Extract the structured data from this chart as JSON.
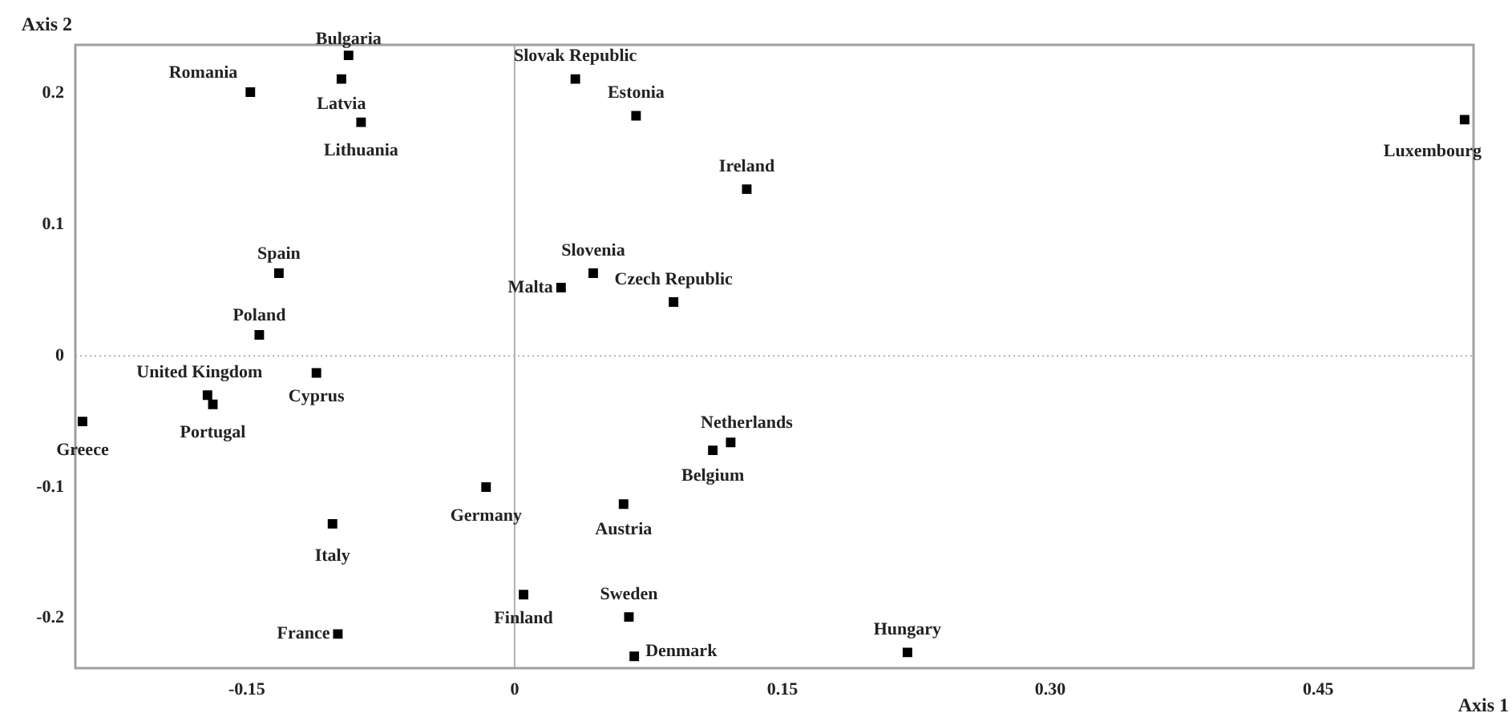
{
  "chart_data": {
    "type": "scatter",
    "xlabel": "Axis 1",
    "ylabel": "Axis 2",
    "x": [
      -0.093,
      -0.097,
      -0.148,
      -0.086,
      -0.132,
      -0.143,
      0.034,
      0.068,
      0.13,
      0.532,
      0.044,
      0.026,
      0.089,
      -0.111,
      -0.172,
      -0.169,
      -0.242,
      -0.016,
      -0.102,
      -0.099,
      0.005,
      0.121,
      0.111,
      0.061,
      0.064,
      0.067,
      0.22
    ],
    "series": [
      {
        "color": "#000000",
        "values": [
          0.229,
          0.211,
          0.201,
          0.178,
          0.063,
          0.016,
          0.211,
          0.183,
          0.127,
          0.18,
          0.063,
          0.052,
          0.041,
          -0.013,
          -0.03,
          -0.037,
          -0.05,
          -0.1,
          -0.128,
          -0.212,
          -0.182,
          -0.066,
          -0.072,
          -0.113,
          -0.199,
          -0.229,
          -0.226
        ]
      }
    ],
    "marker": "square",
    "grid": false,
    "legend": false,
    "xlim": [
      -0.246,
      0.537
    ],
    "ylim": [
      -0.238,
      0.237
    ],
    "xticks": [
      {
        "value": -0.15,
        "label": "-0.15"
      },
      0,
      0.15,
      {
        "value": 0.3,
        "label": "0.30"
      },
      0.45
    ],
    "yticks": [
      -0.2,
      -0.1,
      0,
      0.1,
      0.2
    ],
    "ref_lines": [
      {
        "axis": "x",
        "value": 0,
        "color": "#b0b0b0",
        "line_style": "solid"
      },
      {
        "axis": "y",
        "value": 0,
        "color": "#b0b0b0",
        "line_style": "dotted"
      }
    ],
    "annotations": [
      {
        "text": "Bulgaria",
        "x": -0.093,
        "y": 0.229
      },
      {
        "text": "Latvia",
        "x": -0.097,
        "y": 0.211
      },
      {
        "text": "Romania",
        "x": -0.148,
        "y": 0.201
      },
      {
        "text": "Lithuania",
        "x": -0.086,
        "y": 0.178
      },
      {
        "text": "Spain",
        "x": -0.132,
        "y": 0.063
      },
      {
        "text": "Poland",
        "x": -0.143,
        "y": 0.016
      },
      {
        "text": "Slovak Republic",
        "x": 0.034,
        "y": 0.211
      },
      {
        "text": "Estonia",
        "x": 0.068,
        "y": 0.183
      },
      {
        "text": "Ireland",
        "x": 0.13,
        "y": 0.127
      },
      {
        "text": "Luxembourg",
        "x": 0.532,
        "y": 0.18
      },
      {
        "text": "Slovenia",
        "x": 0.044,
        "y": 0.063
      },
      {
        "text": "Malta",
        "x": 0.026,
        "y": 0.052
      },
      {
        "text": "Czech Republic",
        "x": 0.089,
        "y": 0.041
      },
      {
        "text": "Cyprus",
        "x": -0.111,
        "y": -0.013
      },
      {
        "text": "United Kingdom",
        "x": -0.172,
        "y": -0.03
      },
      {
        "text": "Portugal",
        "x": -0.169,
        "y": -0.037
      },
      {
        "text": "Greece",
        "x": -0.242,
        "y": -0.05
      },
      {
        "text": "Germany",
        "x": -0.016,
        "y": -0.1
      },
      {
        "text": "Italy",
        "x": -0.102,
        "y": -0.128
      },
      {
        "text": "France",
        "x": -0.099,
        "y": -0.212
      },
      {
        "text": "Finland",
        "x": 0.005,
        "y": -0.182
      },
      {
        "text": "Netherlands",
        "x": 0.121,
        "y": -0.066
      },
      {
        "text": "Belgium",
        "x": 0.111,
        "y": -0.072
      },
      {
        "text": "Austria",
        "x": 0.061,
        "y": -0.113
      },
      {
        "text": "Sweden",
        "x": 0.064,
        "y": -0.199
      },
      {
        "text": "Denmark",
        "x": 0.067,
        "y": -0.229
      },
      {
        "text": "Hungary",
        "x": 0.22,
        "y": -0.226
      }
    ]
  }
}
